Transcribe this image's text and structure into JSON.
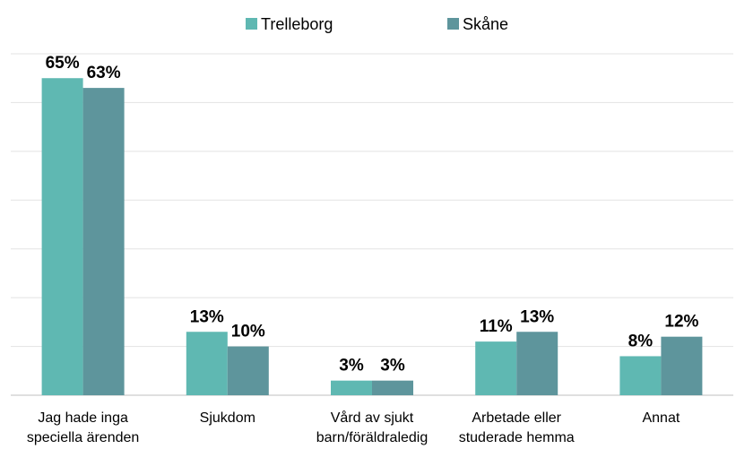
{
  "chart_data": {
    "type": "bar",
    "categories": [
      "Jag hade inga\nspeciella ärenden",
      "Sjukdom",
      "Vård av sjukt\nbarn/föräldraledig",
      "Arbetade eller\nstuderade hemma",
      "Annat"
    ],
    "series": [
      {
        "name": "Trelleborg",
        "color": "#5fb8b2",
        "values": [
          65,
          13,
          3,
          11,
          8
        ],
        "value_labels": [
          "65%",
          "13%",
          "3%",
          "11%",
          "8%"
        ]
      },
      {
        "name": "Skåne",
        "color": "#5e959c",
        "values": [
          63,
          10,
          3,
          13,
          12
        ],
        "value_labels": [
          "63%",
          "10%",
          "3%",
          "13%",
          "12%"
        ]
      }
    ],
    "ylim": [
      0,
      70
    ],
    "yticks": [
      0,
      10,
      20,
      30,
      40,
      50,
      60,
      70
    ],
    "grid": true,
    "legend": "top"
  }
}
